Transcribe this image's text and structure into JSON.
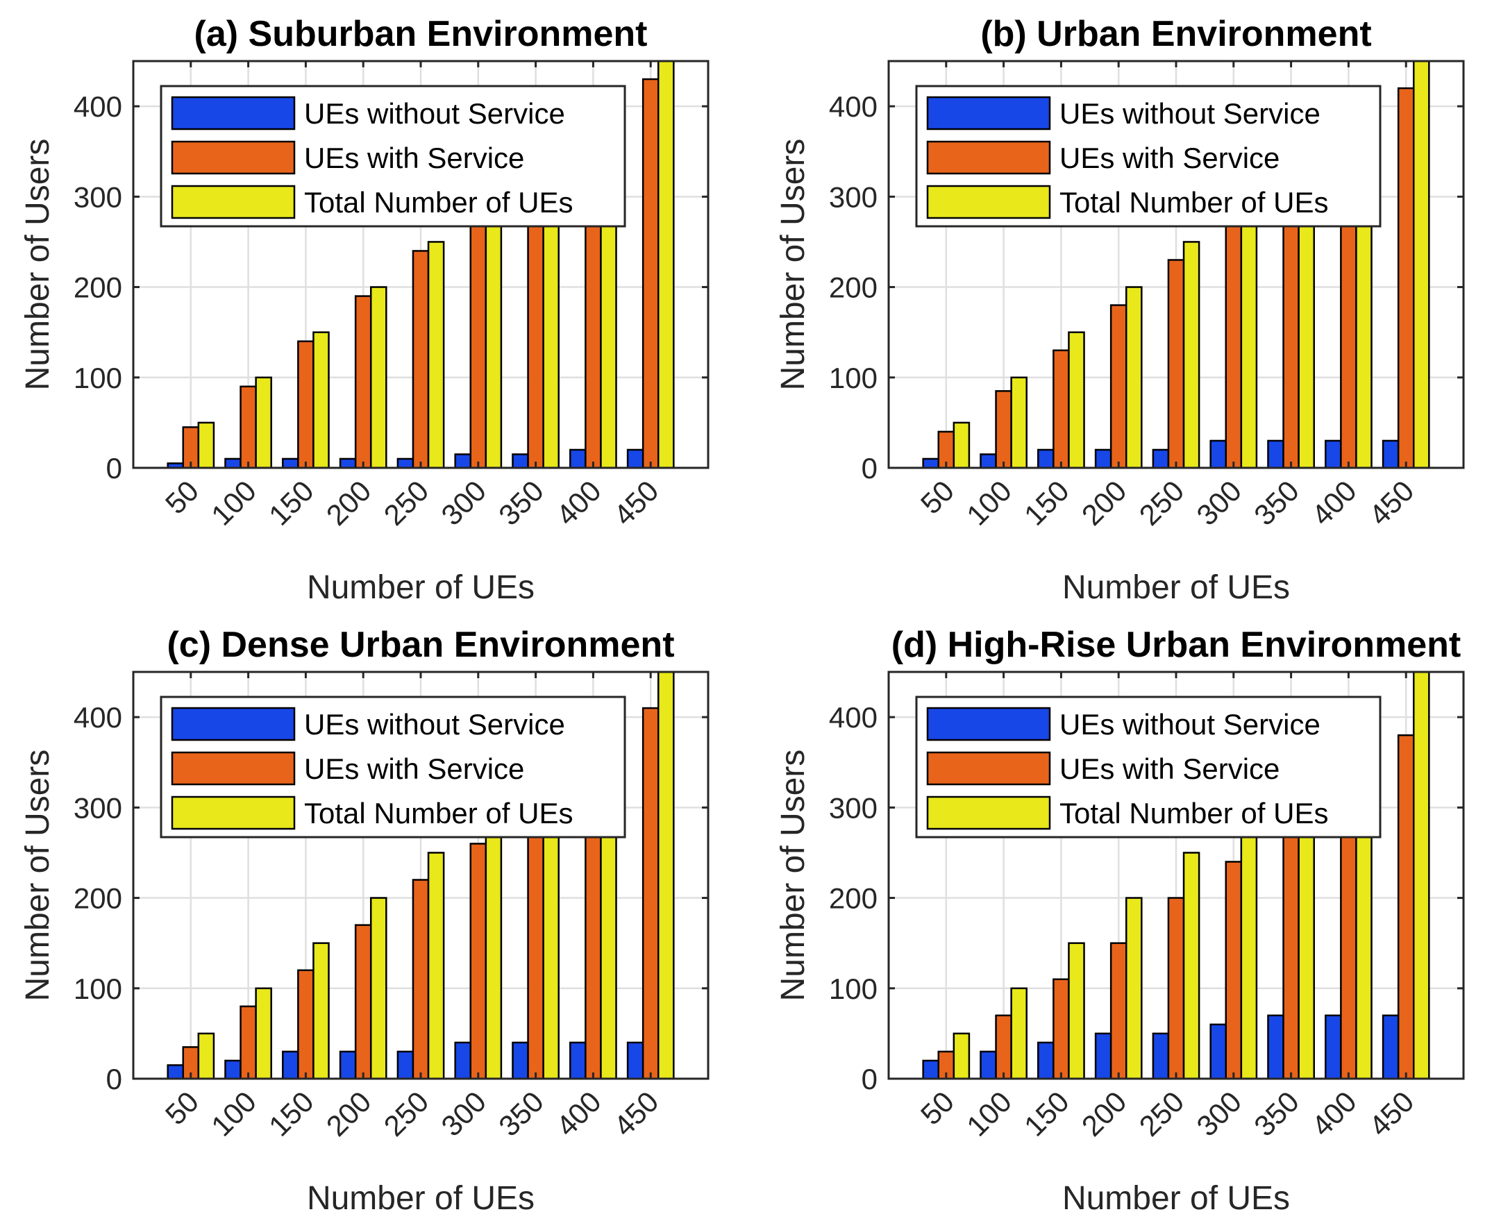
{
  "colors": {
    "without": "#1847e8",
    "with": "#e8641b",
    "total": "#e8e81b"
  },
  "chart_data": [
    {
      "type": "bar",
      "title": "(a) Suburban Environment",
      "xlabel": "Number of UEs",
      "ylabel": "Number of Users",
      "categories": [
        "50",
        "100",
        "150",
        "200",
        "250",
        "300",
        "350",
        "400",
        "450"
      ],
      "ylim": [
        0,
        450
      ],
      "yticks": [
        "0",
        "100",
        "200",
        "300",
        "400"
      ],
      "legend_position": "top-left",
      "grid": true,
      "series": [
        {
          "name": "UEs without Service",
          "values": [
            5,
            10,
            10,
            10,
            10,
            15,
            15,
            20,
            20
          ]
        },
        {
          "name": "UEs with Service",
          "values": [
            45,
            90,
            140,
            190,
            240,
            285,
            335,
            380,
            430
          ]
        },
        {
          "name": "Total Number of UEs",
          "values": [
            50,
            100,
            150,
            200,
            250,
            300,
            350,
            400,
            450
          ]
        }
      ]
    },
    {
      "type": "bar",
      "title": "(b) Urban Environment",
      "xlabel": "Number of UEs",
      "ylabel": "Number of Users",
      "categories": [
        "50",
        "100",
        "150",
        "200",
        "250",
        "300",
        "350",
        "400",
        "450"
      ],
      "ylim": [
        0,
        450
      ],
      "yticks": [
        "0",
        "100",
        "200",
        "300",
        "400"
      ],
      "legend_position": "top-left",
      "grid": true,
      "series": [
        {
          "name": "UEs without Service",
          "values": [
            10,
            15,
            20,
            20,
            20,
            30,
            30,
            30,
            30
          ]
        },
        {
          "name": "UEs with Service",
          "values": [
            40,
            85,
            130,
            180,
            230,
            270,
            320,
            370,
            420
          ]
        },
        {
          "name": "Total Number of UEs",
          "values": [
            50,
            100,
            150,
            200,
            250,
            300,
            350,
            400,
            450
          ]
        }
      ]
    },
    {
      "type": "bar",
      "title": "(c) Dense Urban Environment",
      "xlabel": "Number of UEs",
      "ylabel": "Number of Users",
      "categories": [
        "50",
        "100",
        "150",
        "200",
        "250",
        "300",
        "350",
        "400",
        "450"
      ],
      "ylim": [
        0,
        450
      ],
      "yticks": [
        "0",
        "100",
        "200",
        "300",
        "400"
      ],
      "legend_position": "top-left",
      "grid": true,
      "series": [
        {
          "name": "UEs without Service",
          "values": [
            15,
            20,
            30,
            30,
            30,
            40,
            40,
            40,
            40
          ]
        },
        {
          "name": "UEs with Service",
          "values": [
            35,
            80,
            120,
            170,
            220,
            260,
            310,
            360,
            410
          ]
        },
        {
          "name": "Total Number of UEs",
          "values": [
            50,
            100,
            150,
            200,
            250,
            300,
            350,
            400,
            450
          ]
        }
      ]
    },
    {
      "type": "bar",
      "title": "(d) High-Rise Urban Environment",
      "xlabel": "Number of UEs",
      "ylabel": "Number of Users",
      "categories": [
        "50",
        "100",
        "150",
        "200",
        "250",
        "300",
        "350",
        "400",
        "450"
      ],
      "ylim": [
        0,
        450
      ],
      "yticks": [
        "0",
        "100",
        "200",
        "300",
        "400"
      ],
      "legend_position": "top-left",
      "grid": true,
      "series": [
        {
          "name": "UEs without Service",
          "values": [
            20,
            30,
            40,
            50,
            50,
            60,
            70,
            70,
            70
          ]
        },
        {
          "name": "UEs with Service",
          "values": [
            30,
            70,
            110,
            150,
            200,
            240,
            280,
            330,
            380
          ]
        },
        {
          "name": "Total Number of UEs",
          "values": [
            50,
            100,
            150,
            200,
            250,
            300,
            350,
            400,
            450
          ]
        }
      ]
    }
  ]
}
